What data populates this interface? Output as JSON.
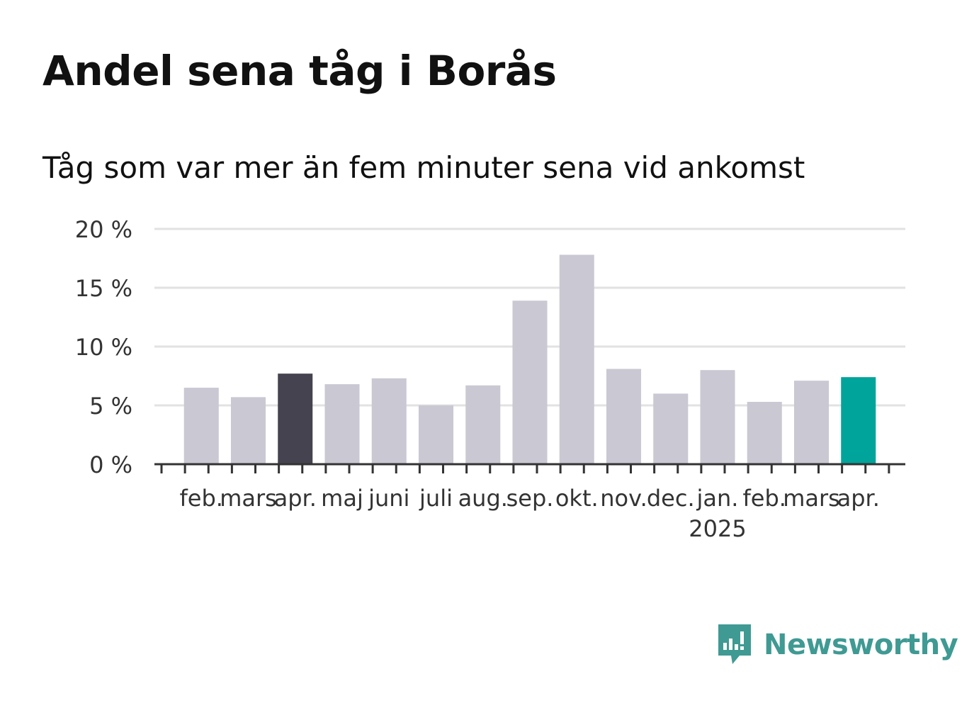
{
  "chart_data": {
    "type": "bar",
    "title": "Andel sena tåg i Borås",
    "subtitle": "Tåg som var mer än fem minuter sena vid ankomst",
    "categories": [
      "feb.",
      "mars",
      "apr.",
      "maj",
      "juni",
      "juli",
      "aug.",
      "sep.",
      "okt.",
      "nov.",
      "dec.",
      "jan.",
      "feb.",
      "mars",
      "apr."
    ],
    "year_label": "2025",
    "year_label_under": 11,
    "values": [
      6.5,
      5.7,
      7.7,
      6.8,
      7.3,
      5.0,
      6.7,
      13.9,
      17.8,
      8.1,
      6.0,
      8.0,
      5.3,
      7.1,
      7.4
    ],
    "y_ticks": [
      "0 %",
      "5 %",
      "10 %",
      "15 %",
      "20 %"
    ],
    "ylim": [
      0,
      20
    ],
    "grid": true,
    "colors": {
      "default": "#c9c8d3",
      "previous_year_highlight": "#44434f",
      "current_highlight": "#00a49a",
      "grid": "#e2e2e2",
      "axis": "#333333"
    },
    "highlight_previous_index": 2,
    "highlight_current_index": 14
  },
  "brand": {
    "name": "Newsworthy",
    "icon": "newsworthy-logo-icon",
    "color": "#3f9a93"
  }
}
